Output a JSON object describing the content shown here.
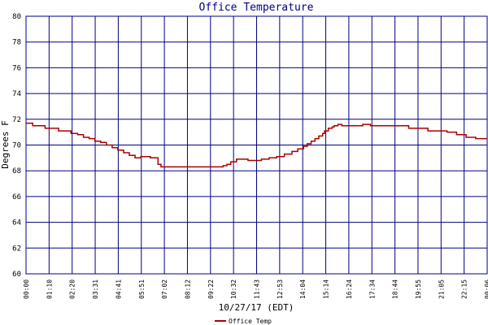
{
  "chart_data": {
    "type": "line",
    "title": "Office Temperature",
    "xlabel": "10/27/17 (EDT)",
    "ylabel": "Degrees F",
    "ylim": [
      60,
      80
    ],
    "yticks": [
      60,
      62,
      64,
      66,
      68,
      70,
      72,
      74,
      76,
      78,
      80
    ],
    "xticks": [
      "00:00",
      "01:10",
      "02:20",
      "03:31",
      "04:41",
      "05:51",
      "07:02",
      "08:12",
      "09:22",
      "10:32",
      "11:43",
      "12:53",
      "14:04",
      "15:14",
      "16:24",
      "17:34",
      "18:44",
      "19:55",
      "21:05",
      "22:15",
      "00:06"
    ],
    "grid": true,
    "legend_position": "bottom-left",
    "colors": {
      "series": "#aa0000",
      "grid": "#000080",
      "text": "#000080"
    },
    "series": [
      {
        "name": "Office Temp",
        "x": [
          0,
          0.3,
          0.35,
          0.9,
          1.0,
          1.5,
          1.7,
          2.0,
          2.35,
          2.7,
          3.0,
          3.3,
          3.6,
          3.9,
          4.2,
          4.5,
          4.8,
          5.1,
          5.4,
          5.7,
          6.0,
          6.3,
          6.5,
          6.9,
          7.05,
          7.2,
          7.3,
          7.5,
          8.0,
          8.5,
          9.0,
          9.5,
          10.0,
          10.1,
          10.3,
          10.5,
          10.7,
          11.0,
          11.3,
          11.6,
          11.9,
          12.3,
          12.7,
          13.1,
          13.5,
          13.9,
          14.2,
          14.5,
          14.7,
          14.9,
          15.1,
          15.3,
          15.5,
          15.6,
          15.8,
          16.0,
          16.1,
          16.2,
          16.3,
          16.5,
          17.0,
          17.5,
          17.6,
          18.0,
          18.5,
          18.6,
          19.0,
          19.5,
          20.0,
          20.5,
          21.0,
          21.5,
          22.0,
          22.5,
          23.0,
          23.5,
          24.1
        ],
        "y": [
          71.7,
          71.7,
          71.5,
          71.5,
          71.3,
          71.3,
          71.1,
          71.1,
          70.9,
          70.8,
          70.6,
          70.5,
          70.3,
          70.2,
          70.0,
          69.8,
          69.6,
          69.4,
          69.2,
          69.0,
          69.1,
          69.1,
          69.0,
          68.5,
          68.3,
          68.3,
          68.3,
          68.3,
          68.3,
          68.3,
          68.3,
          68.3,
          68.3,
          68.3,
          68.4,
          68.5,
          68.7,
          68.9,
          68.9,
          68.8,
          68.8,
          68.9,
          69.0,
          69.1,
          69.3,
          69.5,
          69.7,
          69.9,
          70.1,
          70.3,
          70.5,
          70.7,
          70.9,
          71.1,
          71.3,
          71.4,
          71.5,
          71.5,
          71.6,
          71.5,
          71.5,
          71.5,
          71.6,
          71.5,
          71.5,
          71.5,
          71.5,
          71.5,
          71.3,
          71.3,
          71.1,
          71.1,
          71.0,
          70.8,
          70.6,
          70.5,
          70.5
        ]
      }
    ]
  }
}
